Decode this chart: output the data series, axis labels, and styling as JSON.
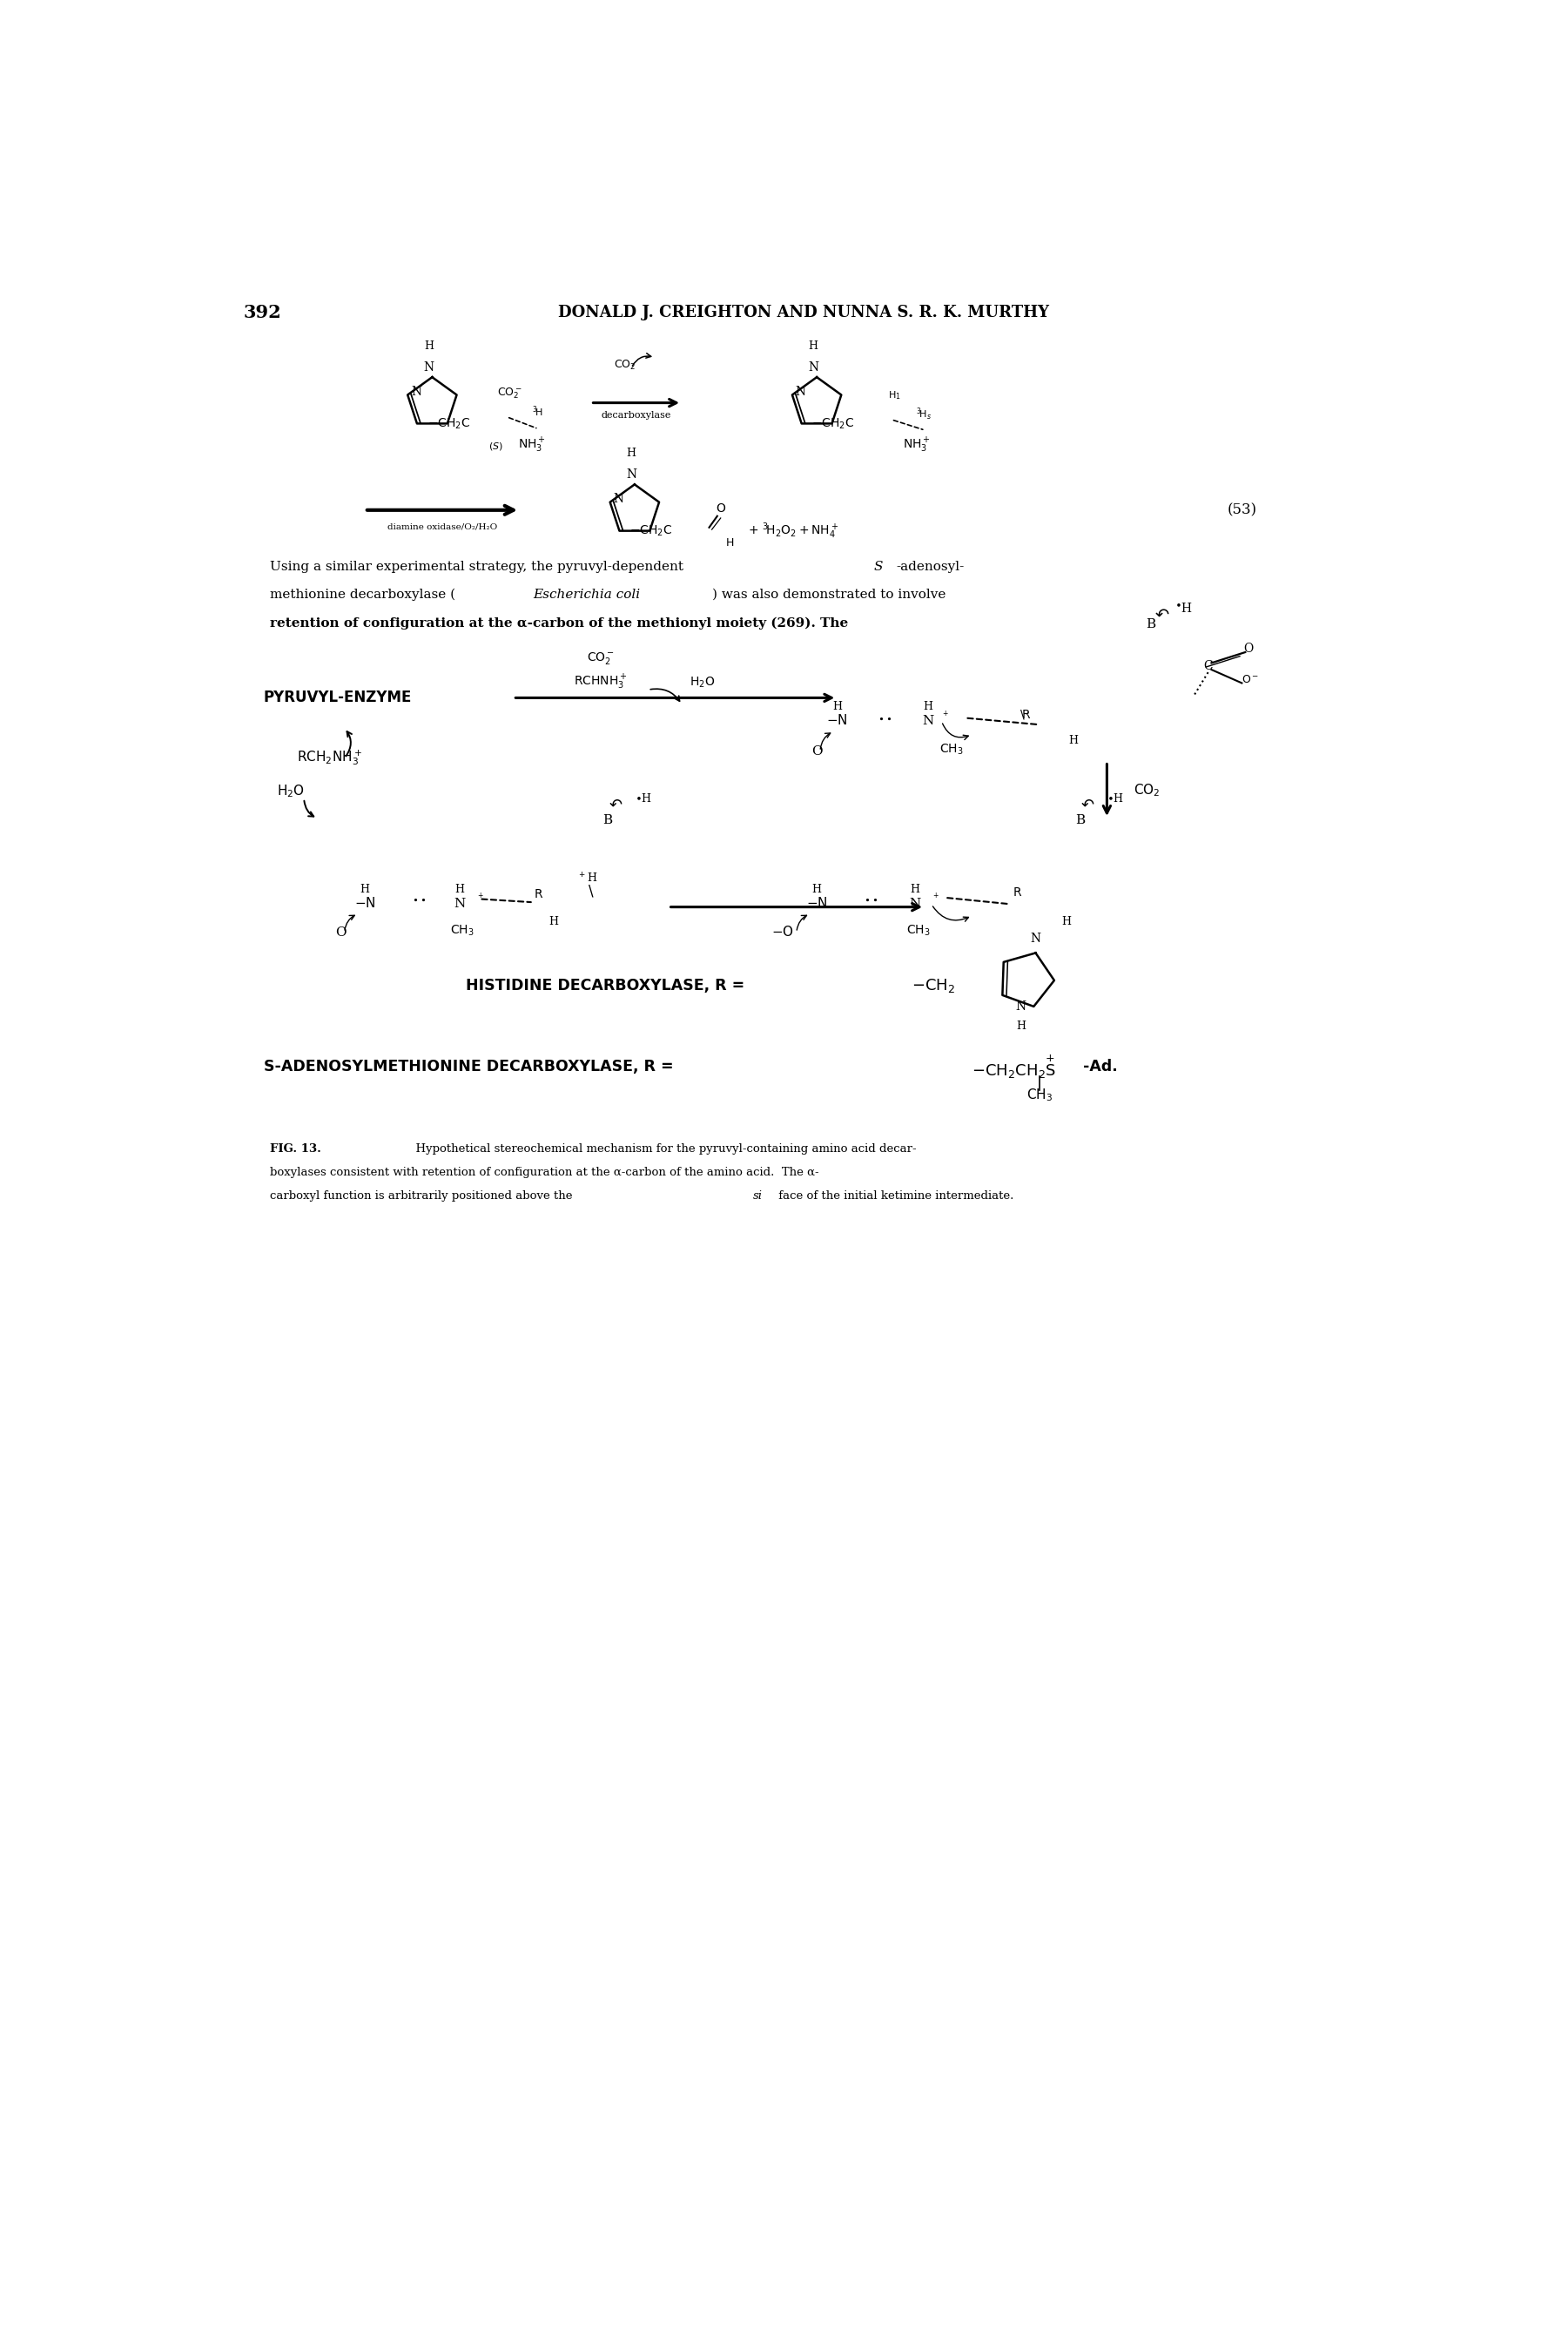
{
  "page_number": "392",
  "header": "DONALD J. CREIGHTON AND NUNNA S. R. K. MURTHY",
  "background_color": "#ffffff",
  "text_color": "#000000",
  "fig_label": "FIG. 13.",
  "fig_caption_rest": "Hypothetical stereochemical mechanism for the pyruvyl-containing amino acid decarboxylases consistent with retention of configuration at the α-carbon of the amino acid. The α-carboxyl function is arbitrarily positioned above the si face of the initial ketimine intermediate.",
  "equation_number": "(53)",
  "body_line1": "Using a similar experimental strategy, the pyruvyl-dependent ",
  "body_S": "S",
  "body_line1b": "-adenosyl-",
  "body_line2a": "methionine decarboxylase (",
  "body_line2b": "Escherichia coli",
  "body_line2c": ") was also demonstrated to involve",
  "body_line3": "retention of configuration at the α-carbon of the methionyl moiety (269). The",
  "pyruvyl_enzyme": "PYRUVYL-ENZYME",
  "histidine_label": "HISTIDINE DECARBOXYLASE, R = -CH₂",
  "sam_label": "S-ADENOSYLMETHIONINE DECARBOXYLASE, R = -CH₂CH₂",
  "sam_label2": "S-Ad.",
  "sam_ch3": "CH₃"
}
